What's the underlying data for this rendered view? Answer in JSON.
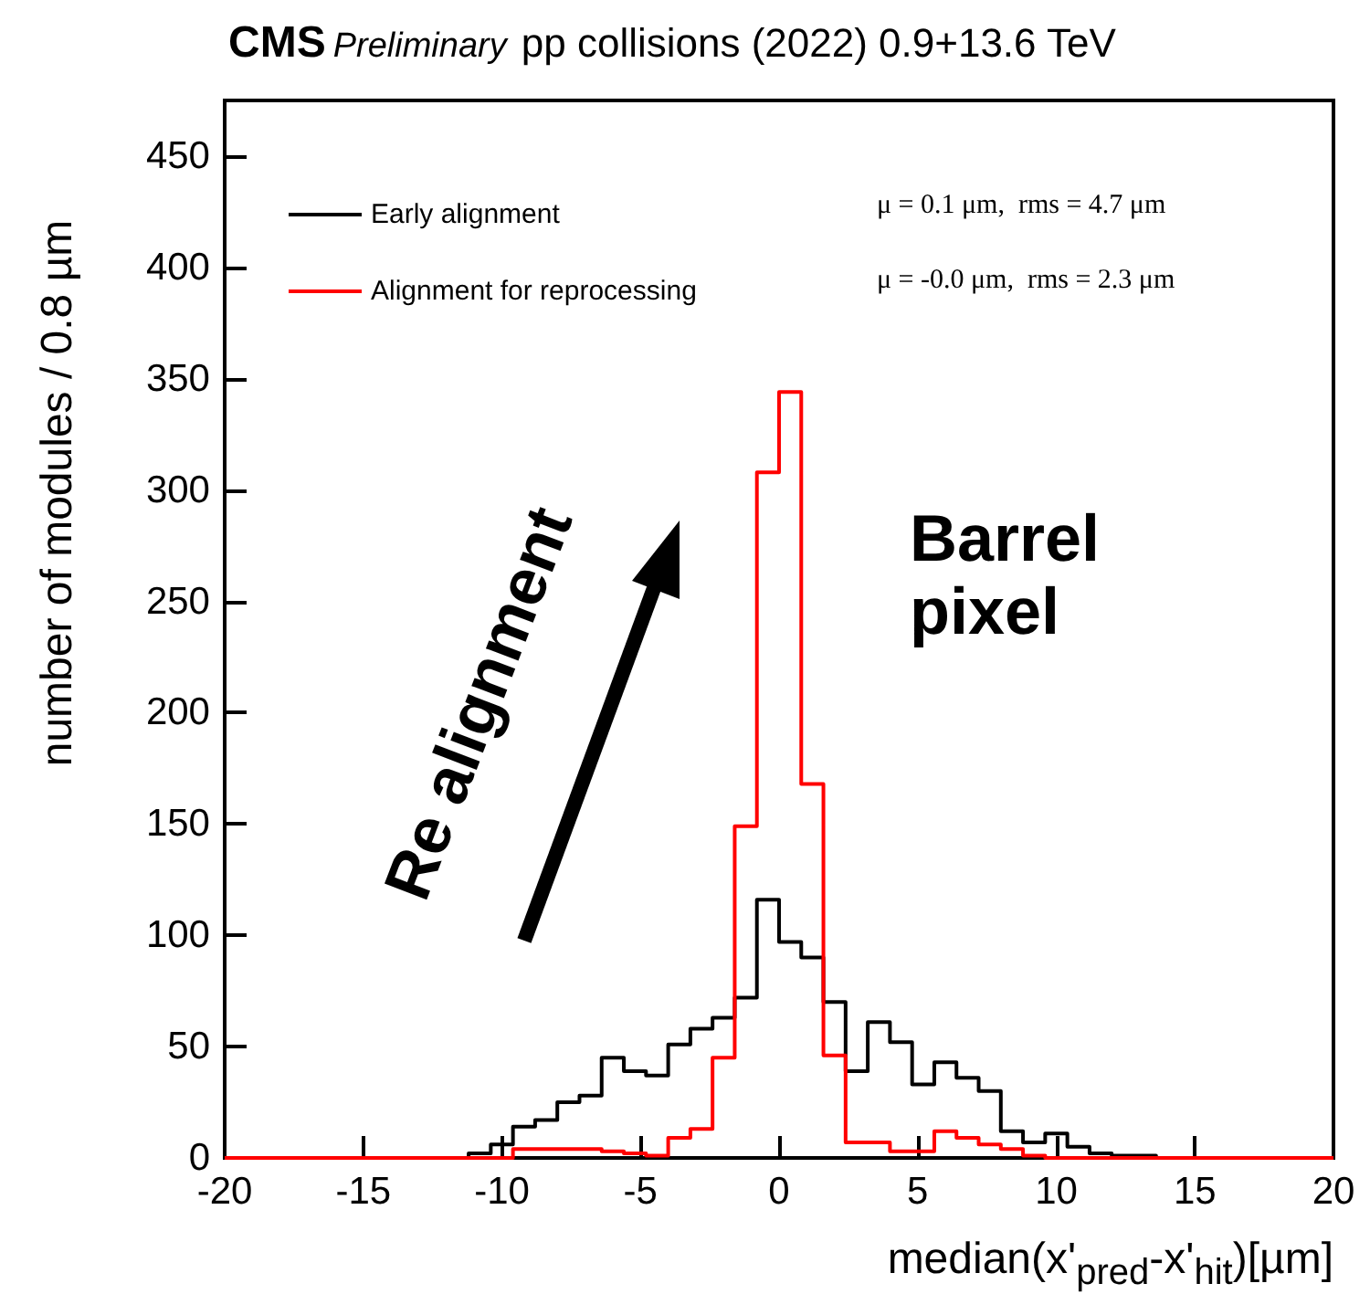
{
  "chart_data": {
    "type": "histogram",
    "title": "CMS",
    "subtitle": "Preliminary",
    "xlabel": "median(x'$_{pred}$-x'$_{hit}$)[µm]",
    "ylabel": "number of modules / 0.8  µm",
    "annotations": [
      "pp collisions (2022) 0.9+13.6 TeV",
      "μ = 0.1 μm,  rms = 4.7 μm",
      "μ = -0.0 μm,  rms = 2.3 μm",
      "Re alignment",
      "Barrel\npixel"
    ],
    "bins": [
      -20,
      -19.2,
      -18.4,
      -17.6,
      -16.8,
      -16,
      -15.2,
      -14.4,
      -13.6,
      -12.8,
      -12,
      -11.2,
      -10.4,
      -9.6,
      -8.8,
      -8,
      -7.2,
      -6.4,
      -5.6,
      -4.8,
      -4,
      -3.2,
      -2.4,
      -1.6,
      -0.8,
      0,
      0.8,
      1.6,
      2.4,
      3.2,
      4,
      4.8,
      5.6,
      6.4,
      7.2,
      8,
      8.8,
      9.6,
      10.4,
      11.2,
      12,
      12.8,
      13.6,
      14.4,
      15.2,
      16,
      16.8,
      17.6,
      18.4,
      19.2,
      20
    ],
    "series": [
      {
        "name": "Early alignment",
        "color": "#000000",
        "values": [
          0,
          0,
          0,
          0,
          0,
          0,
          0,
          0,
          0,
          0,
          0,
          2,
          6,
          14,
          17,
          25,
          28,
          45,
          39,
          37,
          51,
          58,
          63,
          72,
          116,
          97,
          90,
          70,
          39,
          61,
          52,
          33,
          43,
          36,
          30,
          12,
          7,
          11,
          5,
          2,
          1,
          1,
          0,
          0,
          0,
          0,
          0,
          0,
          0,
          0
        ]
      },
      {
        "name": "Alignment for reprocessing",
        "color": "#ff0000",
        "values": [
          0,
          0,
          0,
          0,
          0,
          0,
          0,
          0,
          0,
          0,
          0,
          0,
          0,
          4,
          4,
          4,
          4,
          3,
          2,
          1,
          9,
          13,
          45,
          149,
          308,
          344,
          168,
          46,
          7,
          7,
          3,
          3,
          12,
          9,
          6,
          4,
          1,
          0,
          0,
          0,
          0,
          0,
          0,
          0,
          0,
          0,
          0,
          0,
          0,
          0
        ]
      }
    ],
    "xlim": [
      -20,
      20
    ],
    "xticks": [
      -20,
      -15,
      -10,
      -5,
      0,
      5,
      10,
      15,
      20
    ],
    "ylim": [
      0,
      475
    ],
    "yticks": [
      0,
      50,
      100,
      150,
      200,
      250,
      300,
      350,
      400,
      450
    ],
    "grid": false,
    "legend": "top left"
  }
}
